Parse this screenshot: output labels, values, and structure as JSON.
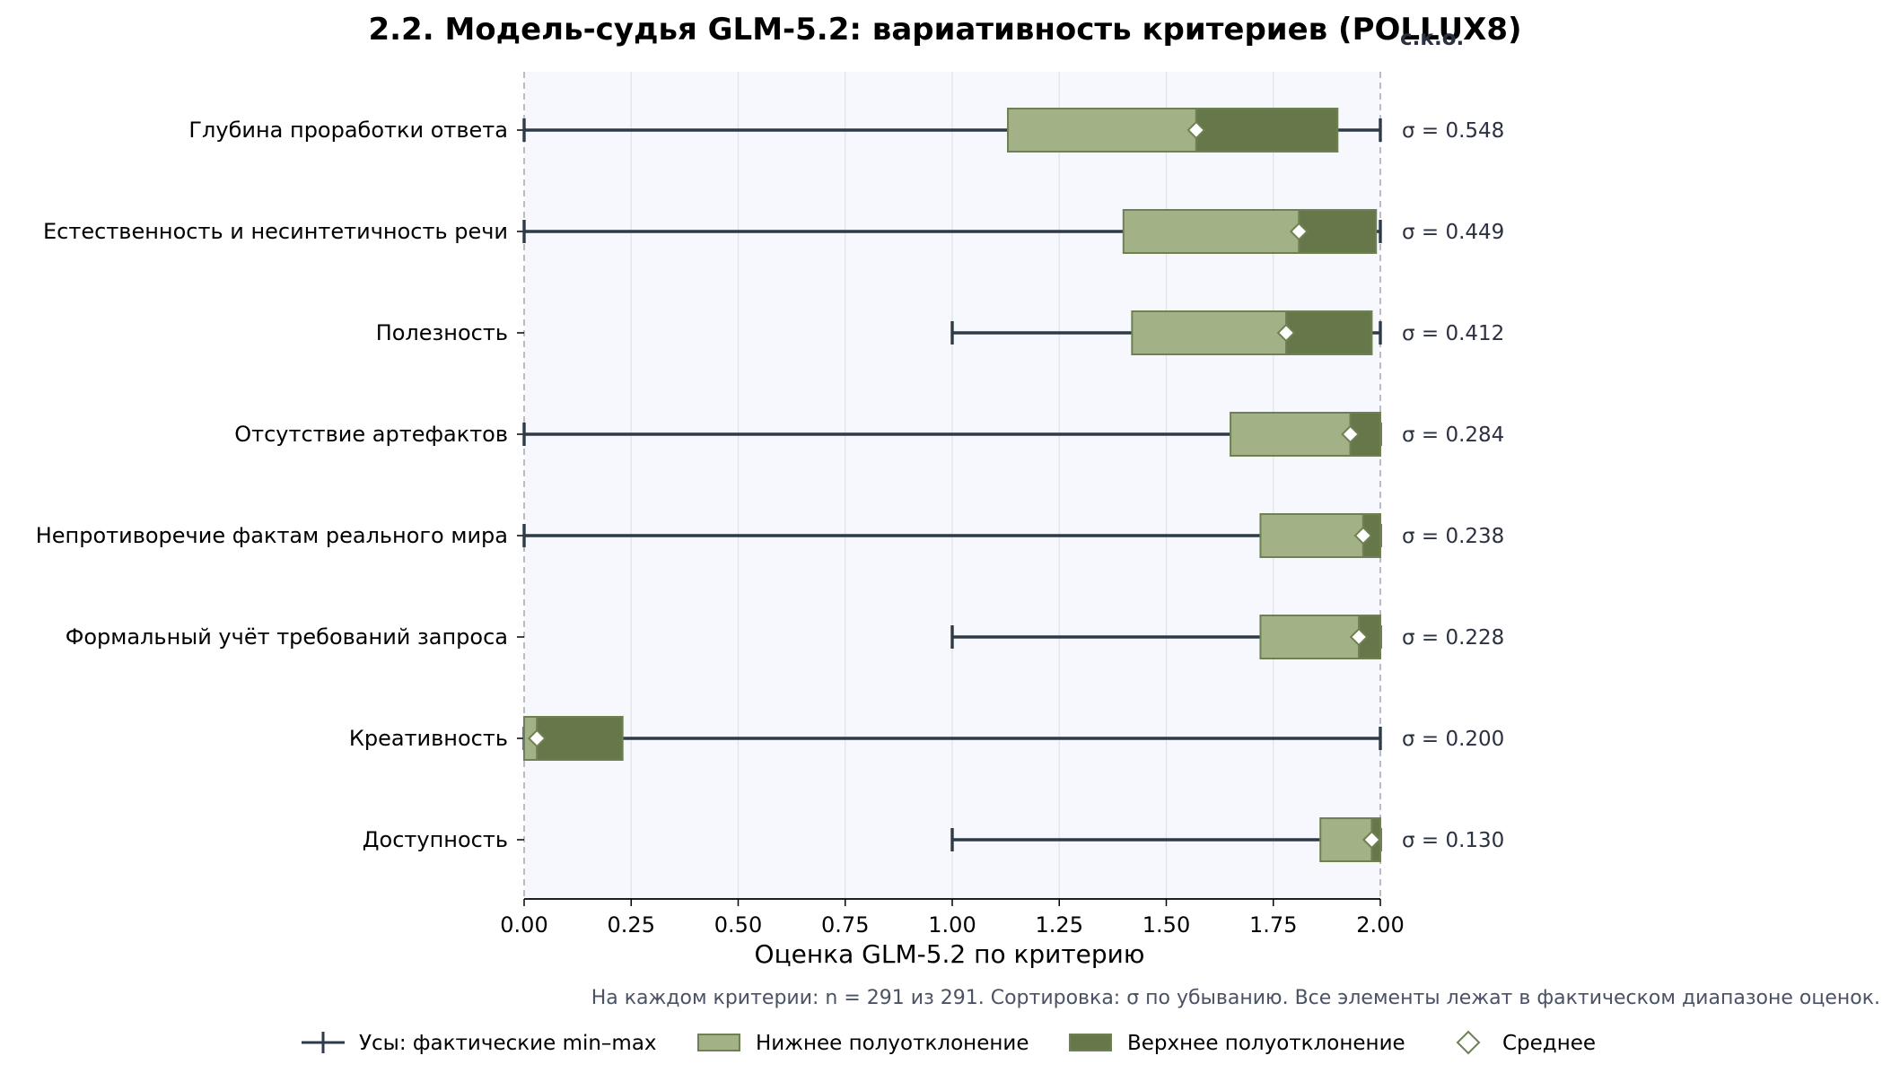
{
  "chart_data": {
    "type": "box",
    "title": "2.2. Модель-судья GLM-5.2: вариативность критериев (POLLUX8)",
    "xlabel": "Оценка GLM-5.2 по критерию",
    "sigma_header": "с.к.о.",
    "xlim": [
      0,
      2
    ],
    "xticks": [
      "0.00",
      "0.25",
      "0.50",
      "0.75",
      "1.00",
      "1.25",
      "1.50",
      "1.75",
      "2.00"
    ],
    "grid": "vertical",
    "legend_position": "bottom",
    "note": "На каждом критерии: n = 291 из 291. Сортировка: σ по убыванию. Все элементы лежат в фактическом диапазоне оценок.",
    "colors": {
      "lower_box": "#a3b187",
      "upper_box": "#66784a",
      "box_edge": "#6f8153",
      "whisker": "#2f3a48",
      "plot_bg": "#f6f8fd",
      "grid": "#dfe2ea",
      "dashed_bound": "#b4b6bc"
    },
    "legend": [
      {
        "key": "whisker",
        "label": "Усы: фактические min–max"
      },
      {
        "key": "lower",
        "label": "Нижнее полуотклонение"
      },
      {
        "key": "upper",
        "label": "Верхнее полуотклонение"
      },
      {
        "key": "mean",
        "label": "Среднее"
      }
    ],
    "rows": [
      {
        "category": "Глубина проработки ответа",
        "min": 0,
        "max": 2,
        "low": 1.13,
        "mean": 1.57,
        "high": 1.9,
        "sigma_label": "σ = 0.548"
      },
      {
        "category": "Естественность и несинтетичность речи",
        "min": 0,
        "max": 2,
        "low": 1.4,
        "mean": 1.81,
        "high": 1.99,
        "sigma_label": "σ = 0.449"
      },
      {
        "category": "Полезность",
        "min": 1,
        "max": 2,
        "low": 1.42,
        "mean": 1.78,
        "high": 1.98,
        "sigma_label": "σ = 0.412"
      },
      {
        "category": "Отсутствие артефактов",
        "min": 0,
        "max": 2,
        "low": 1.65,
        "mean": 1.93,
        "high": 2.0,
        "sigma_label": "σ = 0.284"
      },
      {
        "category": "Непротиворечие фактам реального мира",
        "min": 0,
        "max": 2,
        "low": 1.72,
        "mean": 1.96,
        "high": 2.0,
        "sigma_label": "σ = 0.238"
      },
      {
        "category": "Формальный учёт требований запроса",
        "min": 1,
        "max": 2,
        "low": 1.72,
        "mean": 1.95,
        "high": 2.0,
        "sigma_label": "σ = 0.228"
      },
      {
        "category": "Креативность",
        "min": 0,
        "max": 2,
        "low": 0.0,
        "mean": 0.03,
        "high": 0.23,
        "sigma_label": "σ = 0.200"
      },
      {
        "category": "Доступность",
        "min": 1,
        "max": 2,
        "low": 1.86,
        "mean": 1.98,
        "high": 2.0,
        "sigma_label": "σ = 0.130"
      }
    ]
  }
}
